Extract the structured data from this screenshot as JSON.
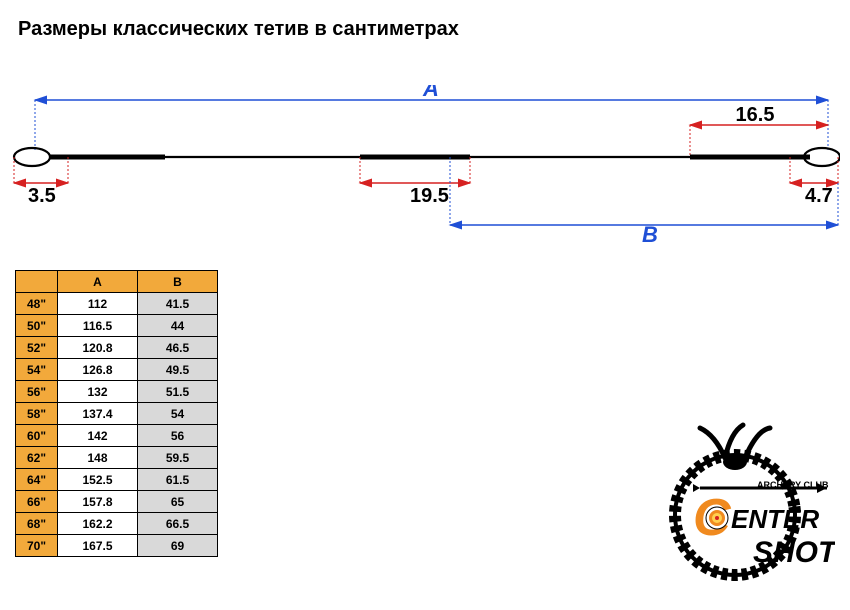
{
  "title": "Размеры классических тетив в сантиметрах",
  "diagram": {
    "label_A": "A",
    "label_B": "B",
    "dim_left_loop": "3.5",
    "dim_center": "19.5",
    "dim_right_loop_top": "16.5",
    "dim_right_loop_bot": "4.7",
    "colors": {
      "arrow_blue": "#1f4fd6",
      "arrow_red": "#d62121",
      "text_blue": "#1f4fd6",
      "text_black": "#000000",
      "string": "#000000"
    }
  },
  "table": {
    "headers": [
      "",
      "A",
      "B"
    ],
    "rows": [
      [
        "48\"",
        "112",
        "41.5"
      ],
      [
        "50\"",
        "116.5",
        "44"
      ],
      [
        "52\"",
        "120.8",
        "46.5"
      ],
      [
        "54\"",
        "126.8",
        "49.5"
      ],
      [
        "56\"",
        "132",
        "51.5"
      ],
      [
        "58\"",
        "137.4",
        "54"
      ],
      [
        "60\"",
        "142",
        "56"
      ],
      [
        "62\"",
        "148",
        "59.5"
      ],
      [
        "64\"",
        "152.5",
        "61.5"
      ],
      [
        "66\"",
        "157.8",
        "65"
      ],
      [
        "68\"",
        "162.2",
        "66.5"
      ],
      [
        "70\"",
        "167.5",
        "69"
      ]
    ],
    "header_bg": "#f2a93b",
    "alt_bg": "#d9d9d9"
  },
  "logo": {
    "text_center": "CENTER",
    "text_shot": "SHOT",
    "text_club": "ARCHERY CLUB",
    "orange": "#f08a1f",
    "black": "#000000"
  }
}
